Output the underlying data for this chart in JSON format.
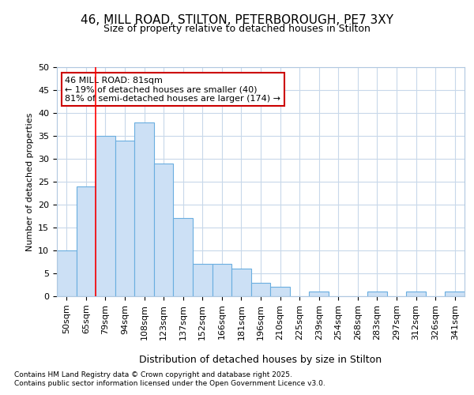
{
  "title_line1": "46, MILL ROAD, STILTON, PETERBOROUGH, PE7 3XY",
  "title_line2": "Size of property relative to detached houses in Stilton",
  "xlabel": "Distribution of detached houses by size in Stilton",
  "ylabel": "Number of detached properties",
  "categories": [
    "50sqm",
    "65sqm",
    "79sqm",
    "94sqm",
    "108sqm",
    "123sqm",
    "137sqm",
    "152sqm",
    "166sqm",
    "181sqm",
    "196sqm",
    "210sqm",
    "225sqm",
    "239sqm",
    "254sqm",
    "268sqm",
    "283sqm",
    "297sqm",
    "312sqm",
    "326sqm",
    "341sqm"
  ],
  "values": [
    10,
    24,
    35,
    34,
    38,
    29,
    17,
    7,
    7,
    6,
    3,
    2,
    0,
    1,
    0,
    0,
    1,
    0,
    1,
    0,
    1
  ],
  "bar_color": "#cce0f5",
  "bar_edge_color": "#6aaee0",
  "bg_color": "#ffffff",
  "plot_bg_color": "#ffffff",
  "grid_color": "#c8d8ea",
  "red_line_index": 2,
  "annotation_title": "46 MILL ROAD: 81sqm",
  "annotation_line1": "← 19% of detached houses are smaller (40)",
  "annotation_line2": "81% of semi-detached houses are larger (174) →",
  "annotation_box_facecolor": "#ffffff",
  "annotation_box_edgecolor": "#cc0000",
  "footer_line1": "Contains HM Land Registry data © Crown copyright and database right 2025.",
  "footer_line2": "Contains public sector information licensed under the Open Government Licence v3.0.",
  "ylim": [
    0,
    50
  ],
  "yticks": [
    0,
    5,
    10,
    15,
    20,
    25,
    30,
    35,
    40,
    45,
    50
  ],
  "title_fontsize": 11,
  "subtitle_fontsize": 9,
  "xlabel_fontsize": 9,
  "ylabel_fontsize": 8,
  "tick_fontsize": 8,
  "annot_fontsize": 8,
  "footer_fontsize": 6.5
}
